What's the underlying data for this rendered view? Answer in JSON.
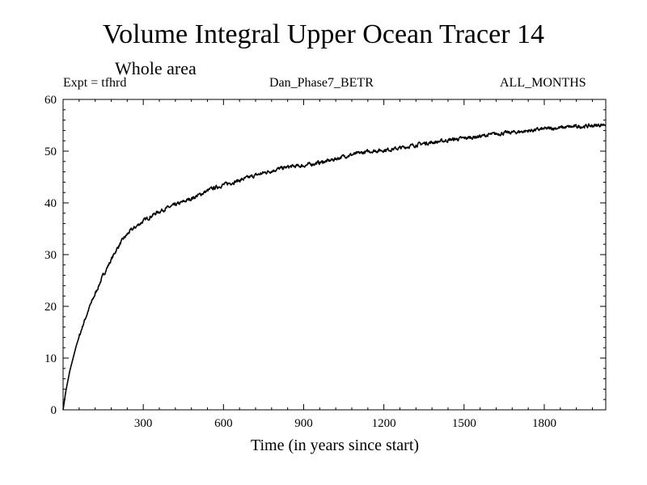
{
  "chart_data": {
    "type": "line",
    "title": "Volume Integral Upper Ocean Tracer 14",
    "subtitle": "Whole area",
    "annotations": {
      "experiment": "Expt = tfhrd",
      "run": "Dan_Phase7_BETR",
      "period": "ALL_MONTHS"
    },
    "xlabel": "Time (in years since start)",
    "ylabel": "",
    "xlim": [
      0,
      2030
    ],
    "ylim": [
      0,
      60
    ],
    "xticks": [
      300,
      600,
      900,
      1200,
      1500,
      1800
    ],
    "yticks": [
      0,
      10,
      20,
      30,
      40,
      50,
      60
    ],
    "grid": false,
    "series": [
      {
        "name": "Tracer 14",
        "color": "#000000",
        "x": [
          0,
          10,
          25,
          50,
          75,
          100,
          125,
          150,
          175,
          200,
          225,
          250,
          275,
          300,
          325,
          350,
          375,
          400,
          450,
          500,
          550,
          600,
          650,
          700,
          750,
          800,
          850,
          900,
          950,
          1000,
          1050,
          1100,
          1150,
          1200,
          1250,
          1300,
          1350,
          1400,
          1450,
          1500,
          1550,
          1600,
          1650,
          1700,
          1750,
          1800,
          1850,
          1900,
          1950,
          2000,
          2030
        ],
        "y": [
          0,
          3.5,
          7.5,
          12.5,
          16.5,
          20.0,
          23.0,
          26.0,
          28.5,
          31.0,
          33.0,
          34.5,
          35.5,
          36.5,
          37.3,
          38.1,
          38.7,
          39.2,
          40.2,
          41.3,
          42.6,
          43.5,
          44.2,
          45.0,
          45.8,
          46.5,
          47.0,
          47.2,
          47.7,
          48.2,
          49.0,
          49.5,
          50.0,
          50.2,
          50.5,
          51.0,
          51.5,
          51.8,
          52.2,
          52.5,
          52.8,
          53.2,
          53.5,
          53.7,
          54.0,
          54.3,
          54.5,
          54.7,
          54.8,
          55.0,
          55.2
        ]
      }
    ]
  }
}
